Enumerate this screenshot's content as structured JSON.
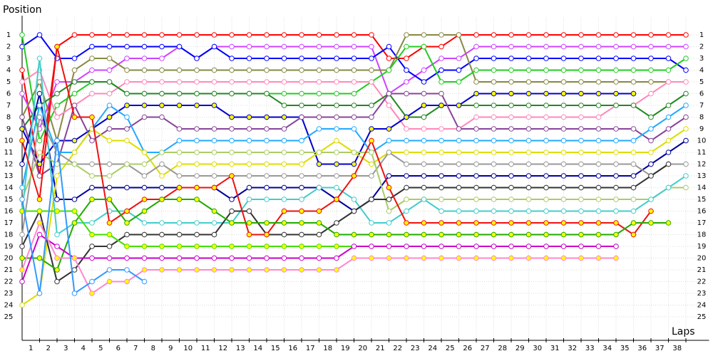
{
  "chart_data": {
    "type": "line",
    "ylabel": "Position",
    "xlabel": "Laps",
    "grid": true,
    "reverse_y": true,
    "x": [
      0,
      1,
      2,
      3,
      4,
      5,
      6,
      7,
      8,
      9,
      10,
      11,
      12,
      13,
      14,
      15,
      16,
      17,
      18,
      19,
      20,
      21,
      22,
      23,
      24,
      25,
      26,
      27,
      28,
      29,
      30,
      31,
      32,
      33,
      34,
      35,
      36,
      37,
      38
    ],
    "xlim": [
      0,
      39
    ],
    "xticks": [
      1,
      2,
      3,
      4,
      5,
      6,
      7,
      8,
      9,
      10,
      11,
      12,
      13,
      14,
      15,
      16,
      17,
      18,
      19,
      20,
      21,
      22,
      23,
      24,
      25,
      26,
      27,
      28,
      29,
      30,
      31,
      32,
      33,
      34,
      35,
      36,
      37,
      38
    ],
    "ylim": [
      27,
      0
    ],
    "yticks": [
      1,
      2,
      3,
      4,
      5,
      6,
      7,
      8,
      9,
      10,
      11,
      12,
      13,
      14,
      15,
      16,
      17,
      18,
      19,
      20,
      21,
      22,
      23,
      24,
      25
    ],
    "series": [
      {
        "color": "#ff0000",
        "marker": "#ffffff",
        "values": [
          4,
          13,
          2,
          1,
          1,
          1,
          1,
          1,
          1,
          1,
          1,
          1,
          1,
          1,
          1,
          1,
          1,
          1,
          1,
          1,
          1,
          3,
          3,
          2,
          2,
          1,
          1,
          1,
          1,
          1,
          1,
          1,
          1,
          1,
          1,
          1,
          1,
          1,
          1
        ]
      },
      {
        "color": "#cc44ff",
        "marker": "#ffffff",
        "values": [
          6,
          9,
          5,
          5,
          4,
          4,
          3,
          3,
          3,
          2,
          3,
          2,
          2,
          2,
          2,
          2,
          2,
          2,
          2,
          2,
          2,
          6,
          5,
          4,
          3,
          3,
          2,
          2,
          2,
          2,
          2,
          2,
          2,
          2,
          2,
          2,
          2,
          2,
          2
        ]
      },
      {
        "color": "#0000ff",
        "marker": "#ffffff",
        "values": [
          2,
          1,
          3,
          3,
          2,
          2,
          2,
          2,
          2,
          2,
          3,
          2,
          3,
          3,
          3,
          3,
          3,
          3,
          3,
          3,
          3,
          2,
          4,
          5,
          4,
          4,
          3,
          3,
          3,
          3,
          3,
          3,
          3,
          3,
          3,
          3,
          3,
          3,
          4
        ]
      },
      {
        "color": "#888844",
        "marker": "#ffffff",
        "values": [
          8,
          5,
          10,
          4,
          3,
          3,
          4,
          4,
          4,
          4,
          4,
          4,
          4,
          4,
          4,
          4,
          4,
          4,
          4,
          4,
          4,
          4,
          1,
          1,
          1,
          1,
          5,
          5,
          5,
          5,
          5,
          5,
          5,
          5,
          5,
          5,
          5,
          5,
          null
        ]
      },
      {
        "color": "#22cc22",
        "marker": "#ffffff",
        "values": [
          1,
          10,
          7,
          6,
          5,
          5,
          6,
          6,
          6,
          6,
          6,
          6,
          6,
          6,
          6,
          6,
          6,
          6,
          6,
          6,
          5,
          4,
          2,
          2,
          5,
          5,
          4,
          4,
          4,
          4,
          4,
          4,
          4,
          4,
          4,
          4,
          4,
          4,
          3
        ]
      },
      {
        "color": "#ff88bb",
        "marker": "#ffffff",
        "values": [
          5,
          4,
          8,
          7,
          6,
          6,
          5,
          5,
          5,
          5,
          5,
          5,
          5,
          5,
          5,
          5,
          5,
          5,
          5,
          5,
          5,
          7,
          9,
          9,
          9,
          9,
          8,
          8,
          8,
          8,
          8,
          8,
          8,
          8,
          7,
          7,
          6,
          5,
          5
        ]
      },
      {
        "color": "#228822",
        "marker": "#ffffff",
        "values": [
          9,
          7,
          6,
          5,
          5,
          5,
          6,
          6,
          6,
          6,
          6,
          6,
          6,
          6,
          6,
          7,
          7,
          7,
          7,
          7,
          7,
          6,
          8,
          8,
          7,
          7,
          7,
          7,
          7,
          7,
          7,
          7,
          7,
          7,
          7,
          7,
          8,
          7,
          6
        ]
      },
      {
        "color": "#0000cc",
        "marker": "#ffff00",
        "values": [
          9,
          12,
          10,
          10,
          9,
          8,
          7,
          7,
          7,
          7,
          7,
          7,
          8,
          8,
          8,
          8,
          8,
          12,
          12,
          12,
          9,
          9,
          8,
          7,
          7,
          7,
          6,
          6,
          6,
          6,
          6,
          6,
          6,
          6,
          6,
          6,
          null,
          null,
          null
        ]
      },
      {
        "color": "#000099",
        "marker": "#ffffff",
        "values": [
          12,
          6,
          15,
          15,
          14,
          14,
          14,
          14,
          14,
          14,
          14,
          14,
          15,
          14,
          14,
          14,
          14,
          14,
          15,
          16,
          15,
          13,
          13,
          13,
          13,
          13,
          13,
          13,
          13,
          13,
          13,
          13,
          13,
          13,
          13,
          13,
          12,
          11,
          10
        ]
      },
      {
        "color": "#884499",
        "marker": "#ffffff",
        "values": [
          8,
          13,
          12,
          7,
          10,
          9,
          9,
          8,
          8,
          9,
          9,
          9,
          9,
          9,
          9,
          9,
          8,
          8,
          8,
          8,
          8,
          6,
          6,
          6,
          6,
          9,
          9,
          9,
          9,
          9,
          9,
          9,
          9,
          9,
          9,
          9,
          10,
          9,
          8
        ]
      },
      {
        "color": "#22aaff",
        "marker": "#ffffff",
        "values": [
          14,
          7,
          11,
          11,
          9,
          7,
          8,
          11,
          11,
          10,
          10,
          10,
          10,
          10,
          10,
          10,
          10,
          9,
          9,
          9,
          11,
          10,
          10,
          10,
          10,
          10,
          10,
          10,
          10,
          10,
          10,
          10,
          10,
          10,
          10,
          10,
          9,
          8,
          7
        ]
      },
      {
        "color": "#dddd00",
        "marker": "#ffffff",
        "values": [
          24,
          23,
          13,
          11,
          9,
          10,
          10,
          11,
          13,
          12,
          12,
          12,
          12,
          12,
          12,
          12,
          12,
          11,
          10,
          11,
          12,
          11,
          11,
          11,
          11,
          11,
          11,
          11,
          11,
          11,
          11,
          11,
          11,
          11,
          11,
          11,
          11,
          10,
          9
        ]
      },
      {
        "color": "#999999",
        "marker": "#ffffff",
        "values": [
          18,
          8,
          11,
          12,
          12,
          12,
          12,
          13,
          12,
          13,
          13,
          13,
          13,
          13,
          13,
          13,
          13,
          13,
          13,
          13,
          13,
          11,
          12,
          12,
          12,
          12,
          12,
          12,
          12,
          12,
          12,
          12,
          12,
          12,
          12,
          12,
          13,
          12,
          12
        ]
      },
      {
        "color": "#aacc66",
        "marker": "#ffffff",
        "values": [
          15,
          11,
          12,
          12,
          13,
          13,
          12,
          12,
          11,
          11,
          11,
          11,
          11,
          11,
          11,
          11,
          11,
          11,
          11,
          11,
          11,
          16,
          15,
          15,
          15,
          15,
          15,
          15,
          15,
          15,
          15,
          15,
          15,
          15,
          15,
          15,
          15,
          14,
          14
        ]
      },
      {
        "color": "#44cccc",
        "marker": "#ffffff",
        "values": [
          16,
          3,
          18,
          17,
          17,
          16,
          16,
          17,
          17,
          17,
          17,
          17,
          17,
          15,
          15,
          15,
          15,
          14,
          14,
          15,
          17,
          17,
          16,
          15,
          16,
          16,
          16,
          16,
          16,
          16,
          16,
          16,
          16,
          16,
          16,
          16,
          15,
          14,
          13
        ]
      },
      {
        "color": "#333333",
        "marker": "#ffffff",
        "values": [
          19,
          16,
          22,
          21,
          19,
          19,
          18,
          18,
          18,
          18,
          18,
          18,
          16,
          16,
          18,
          18,
          18,
          18,
          17,
          16,
          15,
          15,
          14,
          14,
          14,
          14,
          14,
          14,
          14,
          14,
          14,
          14,
          14,
          14,
          14,
          14,
          13,
          12,
          null
        ]
      },
      {
        "color": "#ee1111",
        "marker": "#ffff00",
        "values": [
          10,
          15,
          2,
          8,
          8,
          17,
          16,
          15,
          15,
          14,
          14,
          14,
          13,
          18,
          18,
          16,
          16,
          16,
          15,
          13,
          10,
          14,
          17,
          17,
          17,
          17,
          17,
          17,
          17,
          17,
          17,
          17,
          17,
          17,
          17,
          18,
          16,
          null,
          null
        ]
      },
      {
        "color": "#22aa00",
        "marker": "#ffff00",
        "values": [
          20,
          20,
          21,
          17,
          15,
          15,
          17,
          16,
          15,
          15,
          15,
          16,
          17,
          17,
          17,
          17,
          17,
          17,
          18,
          18,
          18,
          18,
          18,
          18,
          18,
          18,
          18,
          18,
          18,
          18,
          18,
          18,
          18,
          18,
          18,
          17,
          17,
          17,
          null
        ]
      },
      {
        "color": "#44dd00",
        "marker": "#ffff00",
        "values": [
          16,
          16,
          16,
          16,
          18,
          18,
          19,
          19,
          19,
          19,
          19,
          19,
          19,
          19,
          19,
          19,
          19,
          19,
          19,
          19,
          19,
          19,
          19,
          19,
          19,
          19,
          19,
          19,
          19,
          19,
          19,
          19,
          19,
          19,
          19,
          null,
          null,
          null,
          null
        ]
      },
      {
        "color": "#cc00cc",
        "marker": "#ffffff",
        "values": [
          22,
          18,
          19,
          20,
          20,
          20,
          20,
          20,
          20,
          20,
          20,
          20,
          20,
          20,
          20,
          20,
          20,
          20,
          20,
          19,
          19,
          19,
          19,
          19,
          19,
          19,
          19,
          19,
          19,
          19,
          19,
          19,
          19,
          19,
          19,
          null,
          null,
          null,
          null
        ]
      },
      {
        "color": "#ff88cc",
        "marker": "#ffff00",
        "values": [
          21,
          17,
          20,
          20,
          23,
          22,
          22,
          21,
          21,
          21,
          21,
          21,
          21,
          21,
          21,
          21,
          21,
          21,
          21,
          20,
          20,
          20,
          20,
          20,
          20,
          20,
          20,
          20,
          20,
          20,
          20,
          20,
          20,
          20,
          20,
          null,
          null,
          null,
          null
        ]
      },
      {
        "color": "#3399ff",
        "marker": "#ffffff",
        "values": [
          15,
          23,
          10,
          23,
          22,
          21,
          21,
          22,
          null,
          null,
          null,
          null,
          null,
          null,
          null,
          null,
          null,
          null,
          null,
          null,
          null,
          null,
          null,
          null,
          null,
          null,
          null,
          null,
          null,
          null,
          null,
          null,
          null,
          null,
          null,
          null,
          null,
          null,
          null
        ]
      }
    ]
  }
}
